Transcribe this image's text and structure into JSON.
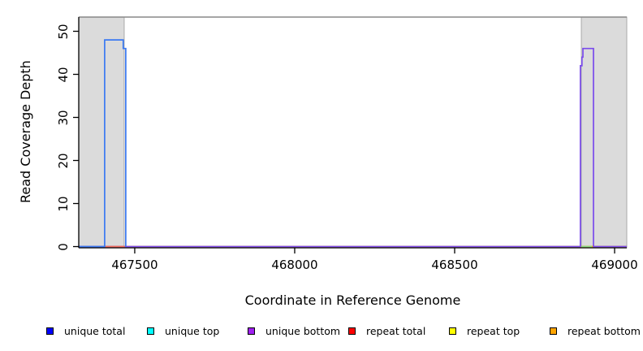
{
  "figure": {
    "xlabel": "Coordinate in Reference Genome",
    "ylabel": "Read Coverage Depth"
  },
  "chart_data": {
    "type": "line",
    "title": "",
    "xlabel": "Coordinate in Reference Genome",
    "ylabel": "Read Coverage Depth",
    "xlim": [
      467325,
      469038
    ],
    "ylim": [
      0,
      53.3
    ],
    "xticks": [
      467500,
      468000,
      468500,
      469000
    ],
    "yticks": [
      0,
      10,
      20,
      30,
      40,
      50
    ],
    "grid": false,
    "legend_position": "bottom",
    "background_color": "#ffffff",
    "shaded_regions": [
      {
        "name": "left-gray-band",
        "x0": 467325,
        "x1": 467467,
        "fill": "#dbdbdb",
        "stroke": "#a9a9a9"
      },
      {
        "name": "right-gray-band",
        "x0": 468896,
        "x1": 469038,
        "fill": "#dbdbdb",
        "stroke": "#a9a9a9"
      }
    ],
    "top_boundary_line": {
      "y": 53.3,
      "color": "#888888"
    },
    "series": [
      {
        "name": "repeat top",
        "color": "#ffff00",
        "points": [
          [
            467325,
            0
          ],
          [
            469038,
            0
          ]
        ]
      },
      {
        "name": "repeat bottom",
        "color": "#ffa500",
        "points": [
          [
            467325,
            0
          ],
          [
            469038,
            0
          ]
        ]
      },
      {
        "name": "unique bottom",
        "color": "#7a4bec",
        "points": [
          [
            467325,
            0
          ],
          [
            468893,
            0
          ],
          [
            468893,
            42
          ],
          [
            468898,
            42
          ],
          [
            468898,
            44
          ],
          [
            468901,
            44
          ],
          [
            468901,
            46
          ],
          [
            468934,
            46
          ],
          [
            468934,
            0
          ],
          [
            469038,
            0
          ]
        ]
      },
      {
        "name": "repeat total",
        "color": "#ef6a5e",
        "points": [
          [
            467406,
            0
          ],
          [
            467469,
            0
          ]
        ]
      },
      {
        "name": "unique top",
        "color": "#85d685",
        "points": [
          [
            468896,
            0
          ],
          [
            468929,
            0
          ]
        ]
      },
      {
        "name": "unique total",
        "color": "#3a79f2",
        "points": [
          [
            467325,
            0
          ],
          [
            467406,
            0
          ],
          [
            467406,
            48
          ],
          [
            467464,
            48
          ],
          [
            467464,
            46
          ],
          [
            467472,
            46
          ],
          [
            467472,
            0
          ]
        ]
      }
    ],
    "legend": [
      {
        "label": "unique total",
        "color": "#0000ff"
      },
      {
        "label": "unique top",
        "color": "#00ffff"
      },
      {
        "label": "unique bottom",
        "color": "#a020f0"
      },
      {
        "label": "repeat total",
        "color": "#ff0000"
      },
      {
        "label": "repeat top",
        "color": "#ffff00"
      },
      {
        "label": "repeat bottom",
        "color": "#ffa500"
      }
    ]
  }
}
